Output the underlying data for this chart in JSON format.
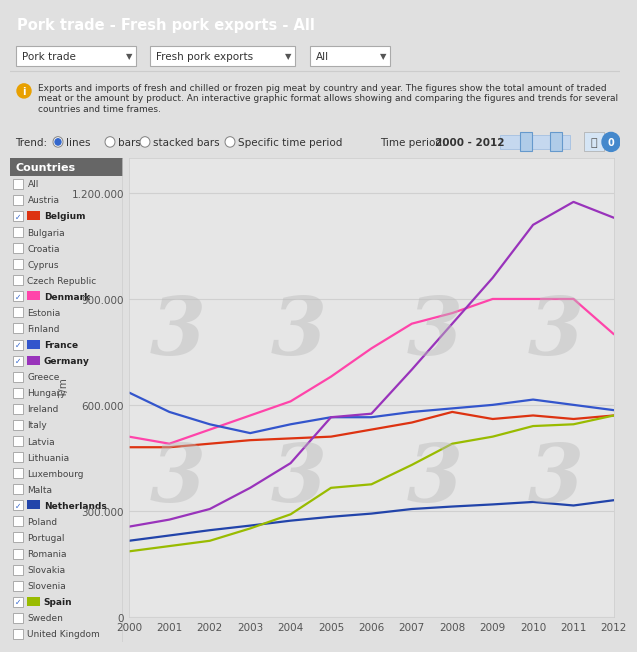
{
  "title": "Pork trade - Fresh pork exports - All",
  "countries_label": "Countries",
  "ylabel": "T/m",
  "years": [
    2000,
    2001,
    2002,
    2003,
    2004,
    2005,
    2006,
    2007,
    2008,
    2009,
    2010,
    2011,
    2012
  ],
  "series": {
    "Belgium": {
      "color": "#dd3311",
      "data": [
        480000,
        480000,
        490000,
        500000,
        505000,
        510000,
        530000,
        550000,
        580000,
        560000,
        570000,
        560000,
        570000
      ]
    },
    "Denmark": {
      "color": "#ff44aa",
      "data": [
        510000,
        490000,
        530000,
        570000,
        610000,
        680000,
        760000,
        830000,
        860000,
        900000,
        900000,
        900000,
        800000
      ]
    },
    "France": {
      "color": "#3355cc",
      "data": [
        635000,
        580000,
        545000,
        520000,
        545000,
        565000,
        565000,
        580000,
        590000,
        600000,
        615000,
        600000,
        585000
      ]
    },
    "Germany": {
      "color": "#9933bb",
      "data": [
        255000,
        275000,
        305000,
        365000,
        435000,
        565000,
        575000,
        700000,
        830000,
        960000,
        1110000,
        1175000,
        1130000
      ]
    },
    "Netherlands": {
      "color": "#2244aa",
      "data": [
        215000,
        230000,
        245000,
        258000,
        272000,
        283000,
        292000,
        305000,
        312000,
        318000,
        325000,
        315000,
        330000
      ]
    },
    "Spain": {
      "color": "#99bb00",
      "data": [
        185000,
        200000,
        215000,
        250000,
        290000,
        365000,
        375000,
        430000,
        490000,
        510000,
        540000,
        545000,
        570000
      ]
    }
  },
  "ylim": [
    0,
    1300000
  ],
  "yticks": [
    0,
    300000,
    600000,
    900000,
    1200000
  ],
  "ytick_labels": [
    "0",
    "300.000",
    "600.000",
    "900.000",
    "1.200.000"
  ],
  "bg_color": "#e0e0e0",
  "chart_bg": "#e4e4e4",
  "header_bg": "#3a6ea5",
  "header_text_color": "#ffffff",
  "panel_bg": "#f5f5f5",
  "countries_bg": "#666666",
  "countries_text_color": "#ffffff",
  "checkbox_countries": [
    "All",
    "Austria",
    "Belgium",
    "Bulgaria",
    "Croatia",
    "Cyprus",
    "Czech Republic",
    "Denmark",
    "Estonia",
    "Finland",
    "France",
    "Germany",
    "Greece",
    "Hungary",
    "Ireland",
    "Italy",
    "Latvia",
    "Lithuania",
    "Luxembourg",
    "Malta",
    "Netherlands",
    "Poland",
    "Portugal",
    "Romania",
    "Slovakia",
    "Slovenia",
    "Spain",
    "Sweden",
    "United Kingdom"
  ],
  "checked_countries": [
    "Belgium",
    "Denmark",
    "France",
    "Germany",
    "Netherlands",
    "Spain"
  ],
  "color_map": {
    "Belgium": "#dd3311",
    "Denmark": "#ff44aa",
    "France": "#3355cc",
    "Germany": "#9933bb",
    "Netherlands": "#2244aa",
    "Spain": "#99bb00"
  }
}
